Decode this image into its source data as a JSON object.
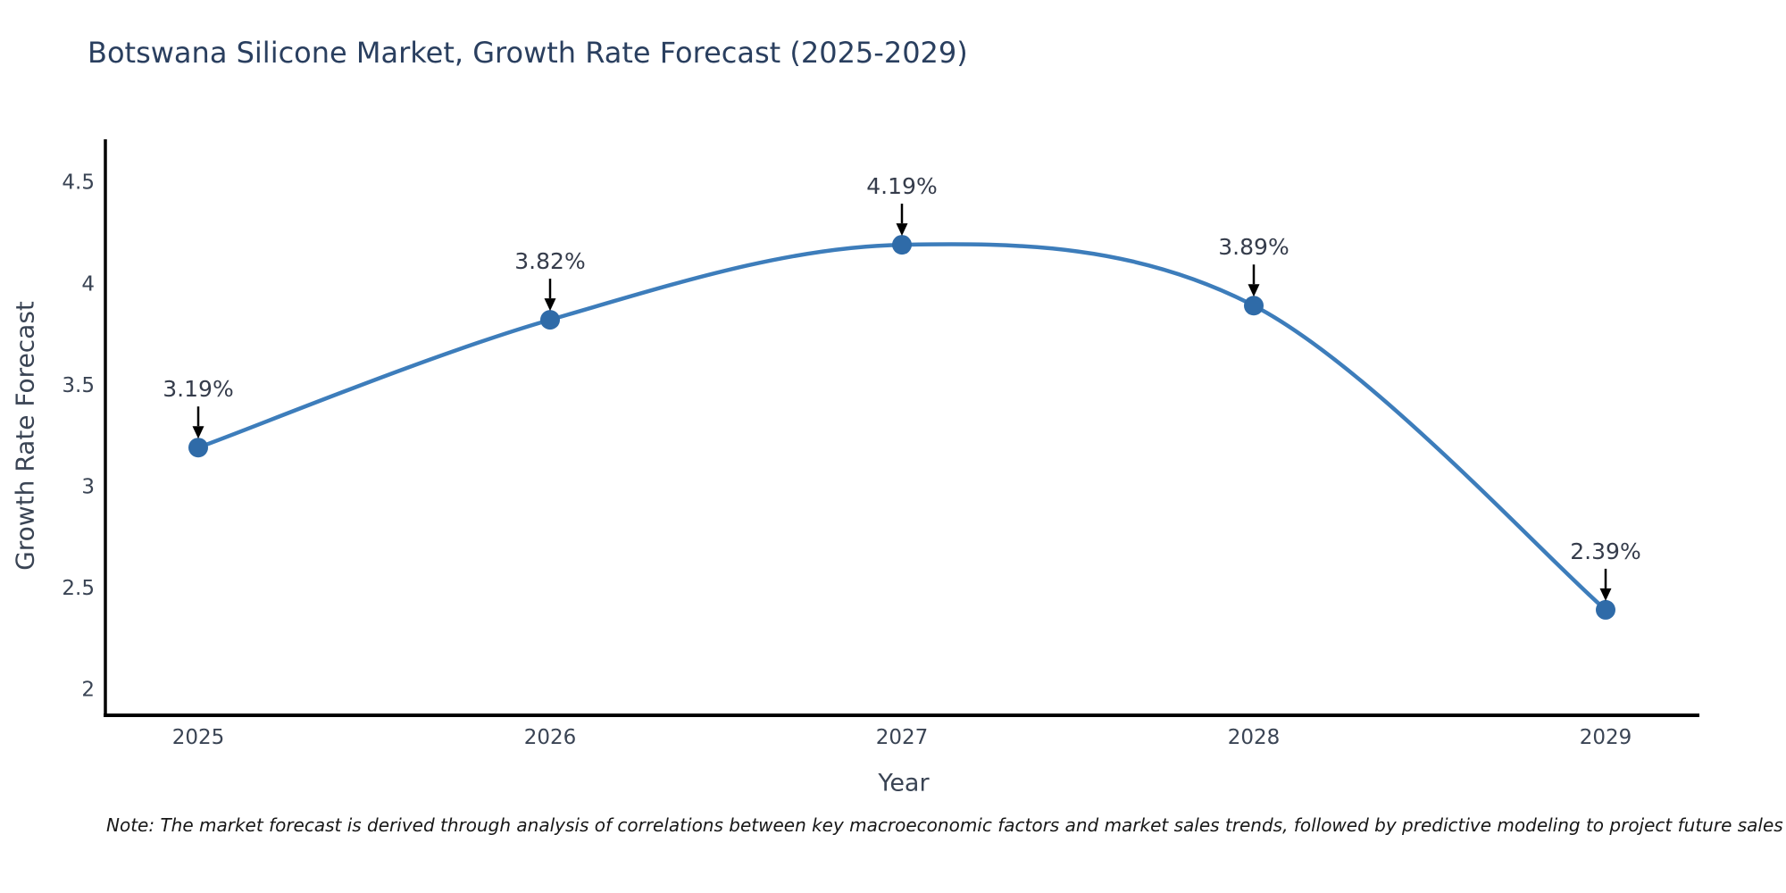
{
  "title": "Botswana Silicone Market, Growth Rate Forecast (2025-2029)",
  "note": "Note: The market forecast is derived through analysis of correlations between key macroeconomic factors and market sales trends, followed by predictive modeling to project future sales",
  "chart_data": {
    "type": "line",
    "title": "Botswana Silicone Market, Growth Rate Forecast (2025-2029)",
    "xlabel": "Year",
    "ylabel": "Growth Rate Forecast",
    "x": [
      2025,
      2026,
      2027,
      2028,
      2029
    ],
    "values": [
      3.19,
      3.82,
      4.19,
      3.89,
      2.39
    ],
    "point_labels": [
      "3.19%",
      "3.82%",
      "4.19%",
      "3.89%",
      "2.39%"
    ],
    "xtick_labels": [
      "2025",
      "2026",
      "2027",
      "2028",
      "2029"
    ],
    "ytick_values": [
      2,
      2.5,
      3,
      3.5,
      4,
      4.5
    ],
    "ytick_labels": [
      "2",
      "2.5",
      "3",
      "3.5",
      "4",
      "4.5"
    ],
    "ylim": [
      1.87,
      4.71
    ],
    "grid": false,
    "legend": null,
    "smooth": true,
    "line_color": "#3d7dbb",
    "marker_color": "#2f6ba8",
    "axis_color": "#000000",
    "annotation_arrow_color": "#000000"
  }
}
